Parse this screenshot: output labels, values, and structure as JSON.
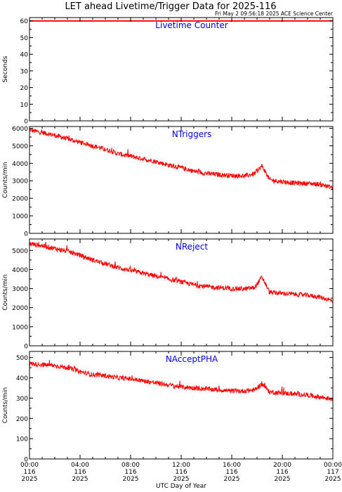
{
  "header": {
    "title": "LET ahead Livetime/Trigger Data for 2025-116",
    "timestamp": "Fri May  2 09:56:18 2025 ACE Science Center"
  },
  "colors": {
    "series": "#ff0000",
    "axis": "#000000",
    "panel_title": "#0000ff"
  },
  "chart_data": [
    {
      "type": "line",
      "title": "Livetime Counter",
      "ylabel": "Seconds",
      "xlabel": "UTC Day of Year",
      "ylim": [
        0,
        62
      ],
      "xlim": [
        0,
        24
      ],
      "yticks": [
        "0",
        "10",
        "20",
        "30",
        "40",
        "50",
        "60"
      ],
      "x": [
        0,
        24
      ],
      "values": [
        60,
        60
      ]
    },
    {
      "type": "line",
      "title": "NTriggers",
      "ylabel": "Counts/min",
      "xlabel": "UTC Day of Year",
      "ylim": [
        0,
        6100
      ],
      "xlim": [
        0,
        24
      ],
      "yticks": [
        "0",
        "1000",
        "2000",
        "3000",
        "4000",
        "5000",
        "6000"
      ],
      "x": [
        0,
        1,
        2,
        3,
        4,
        5,
        6,
        7,
        8,
        9,
        10,
        11,
        12,
        13,
        14,
        15,
        16,
        17,
        17.8,
        18.4,
        19,
        20,
        21,
        22,
        23,
        24
      ],
      "values": [
        5900,
        5750,
        5600,
        5400,
        5200,
        5000,
        4800,
        4550,
        4400,
        4250,
        4100,
        3900,
        3750,
        3550,
        3420,
        3350,
        3300,
        3280,
        3400,
        3850,
        3050,
        2950,
        2880,
        2850,
        2800,
        2600
      ]
    },
    {
      "type": "line",
      "title": "NReject",
      "ylabel": "Counts/min",
      "xlabel": "UTC Day of Year",
      "ylim": [
        0,
        5600
      ],
      "xlim": [
        0,
        24
      ],
      "yticks": [
        "0",
        "1000",
        "2000",
        "3000",
        "4000",
        "5000"
      ],
      "x": [
        0,
        1,
        2,
        3,
        4,
        5,
        6,
        7,
        8,
        9,
        10,
        11,
        12,
        13,
        14,
        15,
        16,
        17,
        17.8,
        18.4,
        19,
        20,
        21,
        22,
        23,
        24
      ],
      "values": [
        5350,
        5250,
        5100,
        4950,
        4750,
        4500,
        4300,
        4100,
        3950,
        3800,
        3650,
        3500,
        3350,
        3200,
        3100,
        3050,
        3000,
        2980,
        3050,
        3600,
        2800,
        2750,
        2700,
        2650,
        2550,
        2350
      ]
    },
    {
      "type": "line",
      "title": "NAcceptPHA",
      "ylabel": "Counts/min",
      "xlabel": "UTC Day of Year",
      "ylim": [
        0,
        530
      ],
      "xlim": [
        0,
        24
      ],
      "yticks": [
        "0",
        "100",
        "200",
        "300",
        "400",
        "500"
      ],
      "x": [
        0,
        1,
        2,
        3,
        4,
        5,
        6,
        7,
        8,
        9,
        10,
        11,
        12,
        13,
        14,
        15,
        16,
        17,
        17.8,
        18.4,
        19,
        20,
        21,
        22,
        23,
        24
      ],
      "values": [
        470,
        465,
        460,
        450,
        430,
        415,
        410,
        400,
        395,
        385,
        375,
        365,
        355,
        350,
        345,
        340,
        335,
        335,
        340,
        370,
        330,
        325,
        320,
        315,
        305,
        295
      ]
    }
  ],
  "xaxis": {
    "label": "UTC Day of Year",
    "ticks": [
      {
        "time": "00:00",
        "day": "116",
        "year": "2025"
      },
      {
        "time": "04:00",
        "day": "116",
        "year": "2025"
      },
      {
        "time": "08:00",
        "day": "116",
        "year": "2025"
      },
      {
        "time": "12:00",
        "day": "116",
        "year": "2025"
      },
      {
        "time": "16:00",
        "day": "116",
        "year": "2025"
      },
      {
        "time": "20:00",
        "day": "116",
        "year": "2025"
      },
      {
        "time": "00:00",
        "day": "117",
        "year": "2025"
      }
    ]
  }
}
